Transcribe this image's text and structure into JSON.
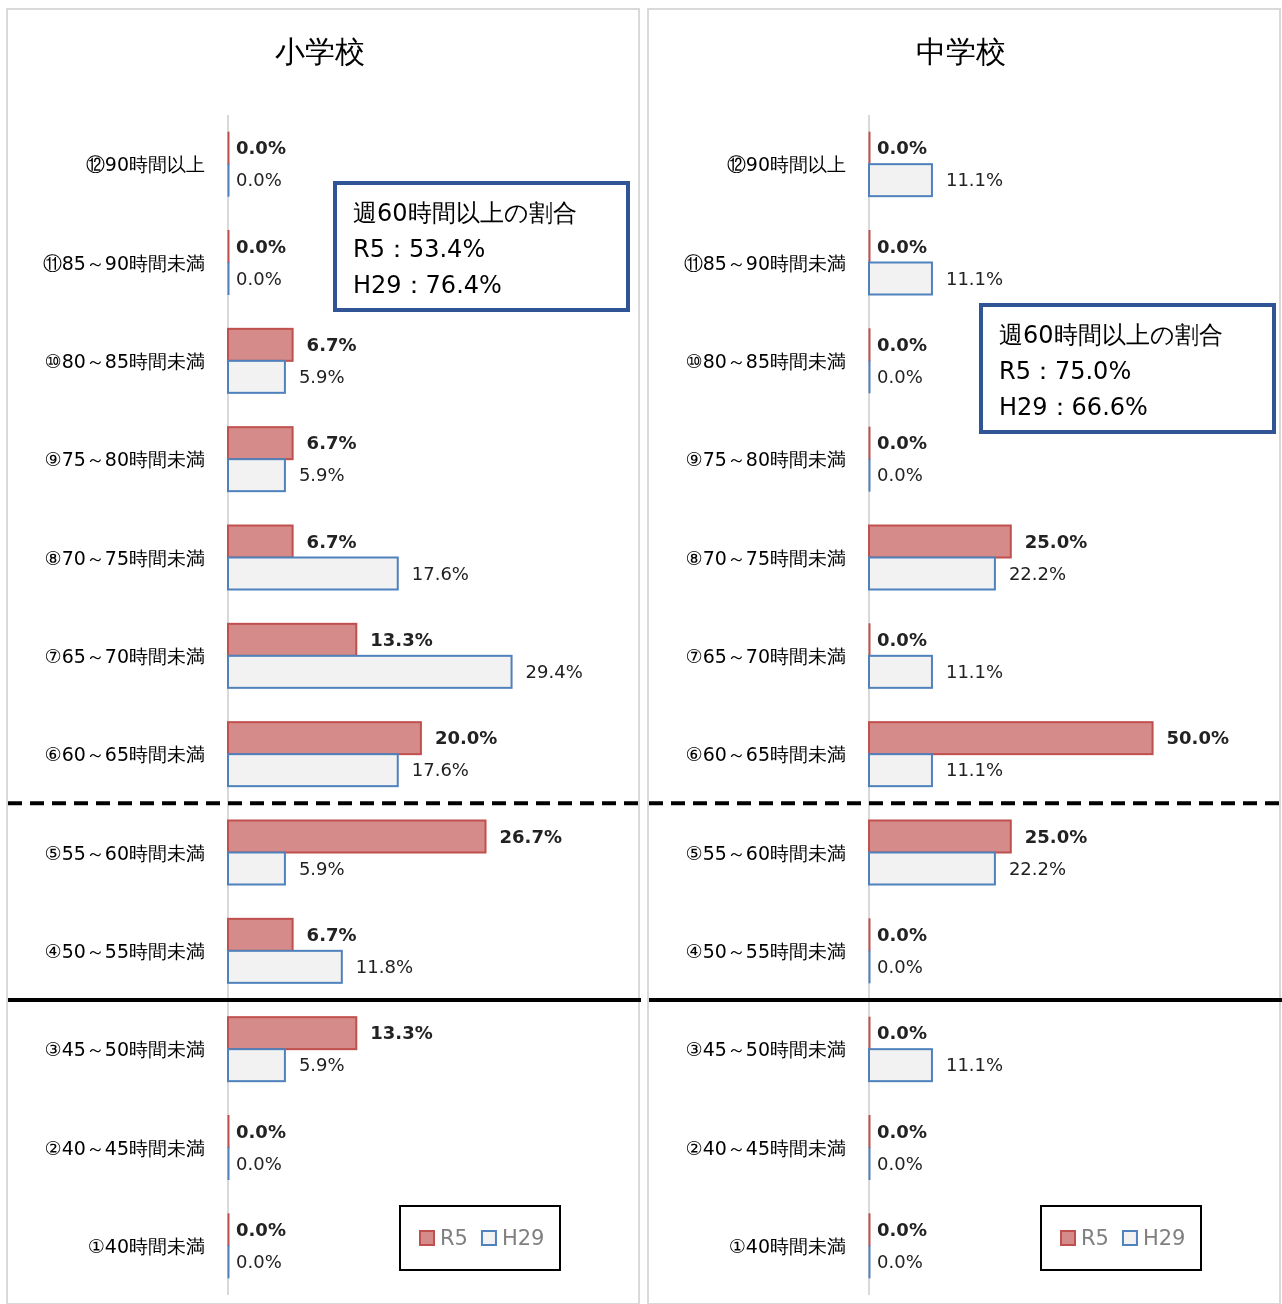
{
  "chart_data": [
    {
      "type": "bar",
      "orientation": "horizontal",
      "title": "小学校",
      "legend": "bottom right",
      "categories": [
        "⑫90時間以上",
        "⑪85～90時間未満",
        "⑩80～85時間未満",
        "⑨75～80時間未満",
        "⑧70～75時間未満",
        "⑦65～70時間未満",
        "⑥60～65時間未満",
        "⑤55～60時間未満",
        "④50～55時間未満",
        "③45～50時間未満",
        "②40～45時間未満",
        "①40時間未満"
      ],
      "series": [
        {
          "name": "R5",
          "color": "#d58b8a",
          "values": [
            0.0,
            0.0,
            6.7,
            6.7,
            6.7,
            13.3,
            20.0,
            26.7,
            6.7,
            13.3,
            0.0,
            0.0
          ],
          "value_labels": [
            "0.0%",
            "0.0%",
            "6.7%",
            "6.7%",
            "6.7%",
            "13.3%",
            "20.0%",
            "26.7%",
            "6.7%",
            "13.3%",
            "0.0%",
            "0.0%"
          ]
        },
        {
          "name": "H29",
          "color": "#f2f2f2",
          "values": [
            0.0,
            0.0,
            5.9,
            5.9,
            17.6,
            29.4,
            17.6,
            5.9,
            11.8,
            5.9,
            0.0,
            0.0
          ],
          "value_labels": [
            "0.0%",
            "0.0%",
            "5.9%",
            "5.9%",
            "17.6%",
            "29.4%",
            "17.6%",
            "5.9%",
            "11.8%",
            "5.9%",
            "0.0%",
            "0.0%"
          ]
        }
      ],
      "ref_lines": [
        {
          "axis": "y",
          "value": "⑥60～65時間未満",
          "line_style": "dashed",
          "color": "#000000"
        },
        {
          "axis": "y",
          "value": "④50～55時間未満",
          "line_style": "solid",
          "color": "#000000"
        }
      ],
      "annotations": [
        "週60時間以上の割合\nR5：53.4%\nH29：76.4%"
      ]
    },
    {
      "type": "bar",
      "orientation": "horizontal",
      "title": "中学校",
      "legend": "bottom right",
      "categories": [
        "⑫90時間以上",
        "⑪85～90時間未満",
        "⑩80～85時間未満",
        "⑨75～80時間未満",
        "⑧70～75時間未満",
        "⑦65～70時間未満",
        "⑥60～65時間未満",
        "⑤55～60時間未満",
        "④50～55時間未満",
        "③45～50時間未満",
        "②40～45時間未満",
        "①40時間未満"
      ],
      "series": [
        {
          "name": "R5",
          "color": "#d58b8a",
          "values": [
            0.0,
            0.0,
            0.0,
            0.0,
            25.0,
            0.0,
            50.0,
            25.0,
            0.0,
            0.0,
            0.0,
            0.0
          ],
          "value_labels": [
            "0.0%",
            "0.0%",
            "0.0%",
            "0.0%",
            "25.0%",
            "0.0%",
            "50.0%",
            "25.0%",
            "0.0%",
            "0.0%",
            "0.0%",
            "0.0%"
          ]
        },
        {
          "name": "H29",
          "color": "#f2f2f2",
          "values": [
            11.1,
            11.1,
            0.0,
            0.0,
            22.2,
            11.1,
            11.1,
            22.2,
            0.0,
            11.1,
            0.0,
            0.0
          ],
          "value_labels": [
            "11.1%",
            "11.1%",
            "0.0%",
            "0.0%",
            "22.2%",
            "11.1%",
            "11.1%",
            "22.2%",
            "0.0%",
            "11.1%",
            "0.0%",
            "0.0%"
          ]
        }
      ],
      "ref_lines": [
        {
          "axis": "y",
          "value": "⑥60～65時間未満",
          "line_style": "dashed",
          "color": "#000000"
        },
        {
          "axis": "y",
          "value": "④50～55時間未満",
          "line_style": "solid",
          "color": "#000000"
        }
      ],
      "annotations": [
        "週60時間以上の割合\nR5：75.0%\nH29：66.6%"
      ]
    }
  ]
}
